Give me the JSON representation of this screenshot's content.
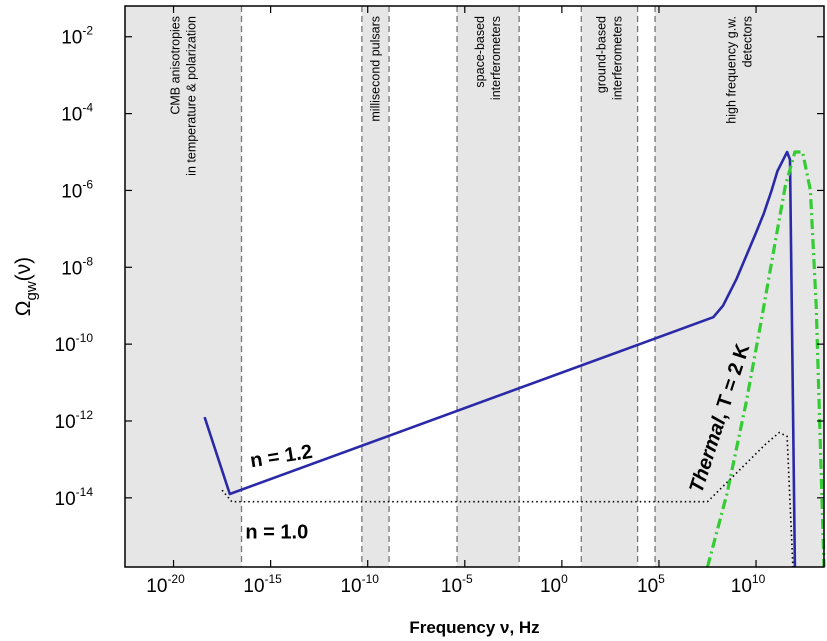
{
  "chart_data": {
    "type": "line",
    "title": "",
    "xlabel": "Frequency ν, Hz",
    "ylabel_main": "Ω",
    "ylabel_sub": "gw",
    "ylabel_arg": "(ν)",
    "x_scale": "log",
    "y_scale": "log",
    "xlim_log10": [
      -22.5,
      13.5
    ],
    "ylim_log10": [
      -15.8,
      -1.2
    ],
    "x_ticks": [
      {
        "base": "10",
        "exp": "-20",
        "log10": -20
      },
      {
        "base": "10",
        "exp": "-15",
        "log10": -15
      },
      {
        "base": "10",
        "exp": "-10",
        "log10": -10
      },
      {
        "base": "10",
        "exp": "-5",
        "log10": -5
      },
      {
        "base": "10",
        "exp": "0",
        "log10": 0
      },
      {
        "base": "10",
        "exp": "5",
        "log10": 5
      },
      {
        "base": "10",
        "exp": "10",
        "log10": 10
      }
    ],
    "y_ticks": [
      {
        "base": "10",
        "exp": "-2",
        "log10": -2
      },
      {
        "base": "10",
        "exp": "-4",
        "log10": -4
      },
      {
        "base": "10",
        "exp": "-6",
        "log10": -6
      },
      {
        "base": "10",
        "exp": "-8",
        "log10": -8
      },
      {
        "base": "10",
        "exp": "-10",
        "log10": -10
      },
      {
        "base": "10",
        "exp": "-12",
        "log10": -12
      },
      {
        "base": "10",
        "exp": "-14",
        "log10": -14
      }
    ],
    "bands": [
      {
        "id": "cmb",
        "from": -22.5,
        "to": -16.5,
        "label": [
          "CMB anisotropies",
          "in temperature & polarization"
        ]
      },
      {
        "id": "pulsars",
        "from": -10.3,
        "to": -8.9,
        "label": [
          "millisecond pulsars"
        ]
      },
      {
        "id": "space",
        "from": -5.4,
        "to": -2.2,
        "label": [
          "space-based",
          "interferometers"
        ]
      },
      {
        "id": "ground",
        "from": 1.0,
        "to": 3.9,
        "label": [
          "ground-based",
          "interferometers"
        ]
      },
      {
        "id": "highfreq",
        "from": 4.8,
        "to": 13.5,
        "label": [
          "high frequency g.w.",
          "detectors"
        ]
      }
    ],
    "series": [
      {
        "id": "n12",
        "color": "#2a2aa8",
        "style": "solid",
        "x": [
          -18.4,
          -17.1,
          7.8,
          8.3,
          9.0,
          9.5,
          10.0,
          10.4,
          10.8,
          11.1,
          11.4,
          11.6,
          11.75,
          12.0
        ],
        "y": [
          -11.9,
          -13.9,
          -9.3,
          -9.0,
          -8.3,
          -7.7,
          -7.1,
          -6.6,
          -6.0,
          -5.5,
          -5.2,
          -5.0,
          -5.2,
          -15.8
        ]
      },
      {
        "id": "n10",
        "color": "#000000",
        "style": "dotted",
        "x": [
          -17.5,
          -17.0,
          -16.0,
          7.5,
          8.5,
          9.5,
          10.5,
          11.2,
          11.6,
          11.9
        ],
        "y": [
          -13.8,
          -14.1,
          -14.1,
          -14.1,
          -13.6,
          -13.1,
          -12.6,
          -12.3,
          -12.4,
          -15.8
        ]
      },
      {
        "id": "thermal",
        "color": "#33cc33",
        "style": "dashdot",
        "x": [
          7.5,
          8.5,
          9.5,
          10.3,
          11.0,
          11.5,
          12.0,
          12.4,
          12.8,
          13.1,
          13.5
        ],
        "y": [
          -15.8,
          -13.9,
          -11.5,
          -9.3,
          -7.3,
          -5.9,
          -5.0,
          -5.0,
          -6.0,
          -9.0,
          -15.8
        ]
      }
    ],
    "annotations": [
      {
        "id": "n12-label",
        "text": "n = 1.2"
      },
      {
        "id": "n10-label",
        "text": "n = 1.0"
      },
      {
        "id": "thermal-label",
        "text_a": "Thermal",
        "text_b": ", T = 2 K"
      }
    ],
    "colors": {
      "band": "#e6e6e6",
      "band_edge": "#777777",
      "axis": "#000000"
    }
  }
}
